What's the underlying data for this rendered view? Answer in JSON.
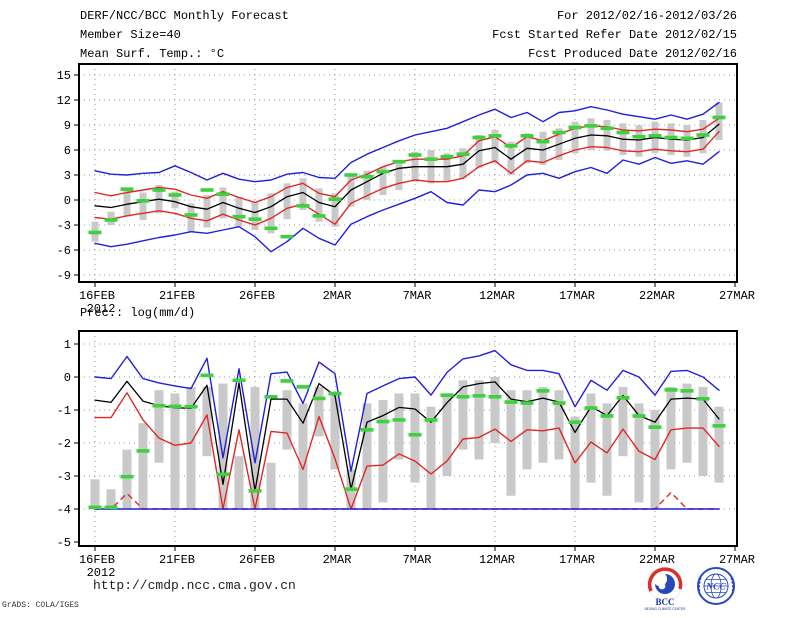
{
  "header": {
    "left": [
      "DERF/NCC/BCC Monthly Forecast",
      "Member Size=40",
      "Mean Surf. Temp.: °C"
    ],
    "right": [
      "For 2012/02/16-2012/03/26",
      "Fcst Started Refer Date 2012/02/15",
      "Fcst Produced Date 2012/02/16"
    ]
  },
  "footer": {
    "url": "http://cmdp.ncc.cma.gov.cn",
    "credit": "GrADS: COLA/IGES",
    "bcc_logo_text": "BCC",
    "bcc_logo_subtext": "BEIJING CLIMATE CENTER",
    "ncc_logo_text": "NCC"
  },
  "colors": {
    "envelope": "#2020d8",
    "quartile": "#e02828",
    "mean": "#000000",
    "observation": "#3dd13d",
    "spread_bar": "#c9c9c9",
    "gridline": "#9a9a9a"
  },
  "chart_data": [
    {
      "id": "temperature",
      "type": "line",
      "title": "Mean Surf. Temp.: °C",
      "x_tick_labels": [
        "16FEB",
        "21FEB",
        "26FEB",
        "2MAR",
        "7MAR",
        "12MAR",
        "17MAR",
        "22MAR",
        "27MAR"
      ],
      "year_label": "2012",
      "y_ticks": [
        15,
        12,
        9,
        6,
        3,
        0,
        -3,
        -6,
        -9
      ],
      "gridlines": [
        15,
        12,
        9,
        6,
        3,
        0,
        -3,
        -6,
        -9
      ],
      "ylim": [
        -9.8,
        16.3
      ],
      "legend_position": "none",
      "series": [
        {
          "name": "ensemble-max",
          "style": "envelope",
          "values": [
            3.5,
            3.1,
            3.0,
            3.2,
            3.3,
            4.1,
            3.3,
            2.4,
            3.2,
            2.5,
            2.2,
            2.4,
            3.1,
            3.3,
            2.7,
            2.6,
            4.5,
            5.5,
            6.3,
            7.1,
            7.8,
            8.2,
            8.6,
            9.4,
            10.2,
            10.9,
            9.9,
            10.5,
            9.4,
            10.5,
            10.7,
            11.2,
            10.8,
            10.3,
            10.0,
            9.7,
            10.2,
            9.7,
            10.3,
            11.7
          ]
        },
        {
          "name": "upper-quartile",
          "style": "quartile",
          "values": [
            0.9,
            0.5,
            0.9,
            1.2,
            1.5,
            1.3,
            0.6,
            0.2,
            1.0,
            0.3,
            -0.3,
            0.4,
            1.5,
            2.0,
            0.8,
            0.4,
            2.4,
            3.1,
            4.0,
            4.6,
            4.9,
            4.9,
            4.9,
            5.3,
            7.1,
            7.6,
            6.3,
            7.6,
            7.1,
            7.9,
            8.6,
            8.9,
            8.8,
            8.4,
            8.3,
            8.5,
            8.4,
            8.2,
            8.5,
            9.8
          ]
        },
        {
          "name": "ensemble-mean",
          "style": "mean",
          "values": [
            -0.7,
            -0.9,
            -0.5,
            -0.2,
            0.1,
            -0.2,
            -0.8,
            -1.1,
            -0.3,
            -1.0,
            -1.5,
            -0.8,
            0.4,
            0.9,
            -0.3,
            -0.8,
            1.2,
            2.2,
            3.2,
            3.8,
            4.0,
            4.0,
            4.0,
            4.3,
            5.9,
            6.3,
            4.9,
            6.2,
            6.0,
            6.7,
            7.4,
            7.8,
            7.7,
            7.3,
            7.2,
            7.5,
            7.3,
            7.2,
            7.5,
            9.1
          ]
        },
        {
          "name": "lower-quartile",
          "style": "quartile",
          "values": [
            -2.1,
            -2.3,
            -1.9,
            -1.6,
            -1.3,
            -1.6,
            -2.2,
            -2.5,
            -1.7,
            -2.4,
            -3.0,
            -2.2,
            -1.0,
            -0.5,
            -1.7,
            -2.9,
            -0.4,
            0.5,
            1.4,
            2.0,
            2.4,
            2.2,
            2.2,
            2.6,
            4.0,
            4.7,
            3.2,
            4.7,
            4.5,
            5.3,
            6.0,
            6.4,
            6.3,
            5.9,
            5.8,
            6.1,
            5.9,
            5.8,
            6.1,
            8.2
          ]
        },
        {
          "name": "ensemble-min",
          "style": "envelope",
          "values": [
            -5.2,
            -5.6,
            -5.3,
            -4.9,
            -4.5,
            -4.2,
            -3.8,
            -4.0,
            -3.6,
            -3.2,
            -4.4,
            -6.2,
            -5.0,
            -3.4,
            -4.6,
            -5.4,
            -2.9,
            -2.0,
            -1.2,
            -0.5,
            0.2,
            1.0,
            -0.3,
            -0.6,
            1.2,
            1.0,
            1.8,
            3.0,
            3.2,
            2.6,
            3.4,
            3.9,
            3.2,
            4.8,
            4.3,
            5.1,
            4.4,
            4.7,
            4.3,
            5.8
          ]
        },
        {
          "name": "observation",
          "style": "observation",
          "values": [
            -3.9,
            -2.4,
            1.3,
            -0.1,
            1.2,
            0.6,
            -1.8,
            1.2,
            0.7,
            -2.0,
            -2.3,
            -3.4,
            -4.4,
            -0.7,
            -1.9,
            0.1,
            3.0,
            2.8,
            3.4,
            4.6,
            5.4,
            4.9,
            5.2,
            5.5,
            7.5,
            7.7,
            6.5,
            7.7,
            7.0,
            8.1,
            8.7,
            8.9,
            8.6,
            8.1,
            7.6,
            7.7,
            7.5,
            7.4,
            7.8,
            9.9
          ]
        }
      ],
      "spread_bars": [
        [
          -5.0,
          -2.6
        ],
        [
          -3.0,
          -1.4
        ],
        [
          -2.0,
          1.2
        ],
        [
          -2.4,
          0.9
        ],
        [
          -1.6,
          1.8
        ],
        [
          -1.0,
          1.0
        ],
        [
          -3.8,
          -0.4
        ],
        [
          -3.3,
          0.6
        ],
        [
          -2.2,
          1.5
        ],
        [
          -3.2,
          0.4
        ],
        [
          -3.6,
          -0.2
        ],
        [
          -4.0,
          0.8
        ],
        [
          -2.3,
          2.0
        ],
        [
          -1.2,
          2.6
        ],
        [
          -2.6,
          1.4
        ],
        [
          -3.2,
          0.8
        ],
        [
          -0.8,
          2.9
        ],
        [
          0.0,
          3.5
        ],
        [
          0.6,
          4.0
        ],
        [
          1.2,
          4.8
        ],
        [
          2.2,
          5.8
        ],
        [
          2.0,
          6.0
        ],
        [
          2.2,
          5.6
        ],
        [
          2.6,
          6.2
        ],
        [
          3.8,
          7.8
        ],
        [
          4.4,
          8.4
        ],
        [
          3.0,
          7.0
        ],
        [
          4.4,
          8.0
        ],
        [
          4.2,
          8.2
        ],
        [
          4.8,
          8.6
        ],
        [
          5.6,
          9.4
        ],
        [
          6.0,
          9.8
        ],
        [
          5.9,
          9.6
        ],
        [
          5.4,
          9.2
        ],
        [
          5.2,
          9.0
        ],
        [
          5.6,
          9.4
        ],
        [
          5.4,
          9.2
        ],
        [
          5.2,
          9.0
        ],
        [
          5.6,
          9.6
        ],
        [
          7.2,
          11.7
        ]
      ]
    },
    {
      "id": "precipitation",
      "type": "line",
      "title": "Prec.: log(mm/d)",
      "x_tick_labels": [
        "16FEB",
        "21FEB",
        "26FEB",
        "2MAR",
        "7MAR",
        "12MAR",
        "17MAR",
        "22MAR",
        "27MAR"
      ],
      "year_label": "2012",
      "y_ticks": [
        1,
        0,
        -1,
        -2,
        -3,
        -4,
        -5
      ],
      "gridlines": [
        1,
        0,
        -1,
        -2,
        -3,
        -4
      ],
      "ylim": [
        -5.1,
        1.4
      ],
      "legend_position": "none",
      "series": [
        {
          "name": "ensemble-max",
          "style": "envelope",
          "values": [
            0.0,
            -0.05,
            0.62,
            -0.05,
            -0.18,
            -0.27,
            -0.35,
            0.57,
            -2.45,
            0.25,
            -2.6,
            0.1,
            0.15,
            -0.8,
            0.45,
            0.1,
            -2.85,
            -0.5,
            -0.27,
            -0.05,
            0.0,
            -0.55,
            0.14,
            0.55,
            0.64,
            0.8,
            0.37,
            0.2,
            0.2,
            0.1,
            -0.9,
            -0.1,
            -0.4,
            0.2,
            0.0,
            -0.55,
            0.17,
            0.2,
            0.0,
            -0.4
          ]
        },
        {
          "name": "upper-quartile",
          "style": "quartile",
          "values": [
            -1.23,
            -1.23,
            -0.48,
            -1.3,
            -1.85,
            -2.07,
            -2.0,
            -1.15,
            -4.0,
            -1.6,
            -4.0,
            -1.65,
            -1.7,
            -2.8,
            -1.2,
            -2.48,
            -4.0,
            -2.7,
            -2.67,
            -2.33,
            -2.55,
            -2.94,
            -2.55,
            -1.88,
            -1.83,
            -1.58,
            -1.95,
            -1.6,
            -1.63,
            -1.55,
            -2.6,
            -1.97,
            -2.3,
            -1.58,
            -2.25,
            -2.5,
            -1.6,
            -1.55,
            -1.55,
            -2.1
          ]
        },
        {
          "name": "ensemble-mean",
          "style": "mean",
          "values": [
            -0.7,
            -0.77,
            -0.13,
            -0.73,
            -0.87,
            -0.93,
            -0.95,
            -0.25,
            -3.25,
            -0.18,
            -3.45,
            -0.67,
            -0.67,
            -1.4,
            -0.2,
            -0.57,
            -3.4,
            -1.37,
            -1.17,
            -0.92,
            -0.97,
            -1.37,
            -0.78,
            -0.3,
            -0.2,
            -0.15,
            -0.67,
            -0.75,
            -0.64,
            -0.76,
            -1.68,
            -0.9,
            -1.17,
            -0.56,
            -1.17,
            -1.37,
            -0.67,
            -0.64,
            -0.67,
            -1.27
          ]
        },
        {
          "name": "lower-quartile",
          "style": "quartile-dashed",
          "values": [
            -4,
            -4,
            -3.53,
            -4,
            -4,
            -4,
            -4,
            -4,
            -4,
            -4,
            -4,
            -4,
            -4,
            -4,
            -4,
            -4,
            -4,
            -4,
            -4,
            -4,
            -4,
            -4,
            -4,
            -4,
            -4,
            -4,
            -4,
            -4,
            -4,
            -4,
            -4,
            -4,
            -4,
            -4,
            -4,
            -4,
            -3.5,
            -4,
            -4,
            -4
          ]
        },
        {
          "name": "ensemble-min",
          "style": "envelope",
          "values": [
            -4,
            -4,
            -4,
            -4,
            -4,
            -4,
            -4,
            -4,
            -4,
            -4,
            -4,
            -4,
            -4,
            -4,
            -4,
            -4,
            -4,
            -4,
            -4,
            -4,
            -4,
            -4,
            -4,
            -4,
            -4,
            -4,
            -4,
            -4,
            -4,
            -4,
            -4,
            -4,
            -4,
            -4,
            -4,
            -4,
            -4,
            -4,
            -4,
            -4
          ]
        },
        {
          "name": "observation",
          "style": "observation",
          "values": [
            -3.95,
            -3.95,
            -3.02,
            -2.24,
            -0.87,
            -0.89,
            -0.9,
            0.05,
            -2.95,
            -0.1,
            -3.45,
            -0.6,
            -0.12,
            -0.3,
            -0.65,
            -0.5,
            -3.4,
            -1.6,
            -1.35,
            -1.3,
            -1.75,
            -1.3,
            -0.55,
            -0.6,
            -0.57,
            -0.6,
            -0.76,
            -0.79,
            -0.42,
            -0.79,
            -1.37,
            -0.94,
            -1.18,
            -0.63,
            -1.18,
            -1.52,
            -0.39,
            -0.42,
            -0.66,
            -1.48
          ]
        }
      ],
      "spread_bars": [
        [
          -4,
          -3.1
        ],
        [
          -4,
          -3.4
        ],
        [
          -4,
          -2.2
        ],
        [
          -4,
          -1.4
        ],
        [
          -2.6,
          -0.4
        ],
        [
          -4,
          -0.5
        ],
        [
          -4,
          -0.3
        ],
        [
          -2.4,
          -0.3
        ],
        [
          -4,
          -0.2
        ],
        [
          -4,
          -2.4
        ],
        [
          -4,
          -0.3
        ],
        [
          -4,
          -2.6
        ],
        [
          -2.2,
          -0.4
        ],
        [
          -4,
          -0.8
        ],
        [
          -1.8,
          -0.3
        ],
        [
          -2.8,
          -0.5
        ],
        [
          -4,
          -2.8
        ],
        [
          -4,
          -0.8
        ],
        [
          -3.8,
          -0.7
        ],
        [
          -2.5,
          -0.5
        ],
        [
          -3.2,
          -0.5
        ],
        [
          -4,
          -0.9
        ],
        [
          -3.0,
          -0.5
        ],
        [
          -2.2,
          -0.1
        ],
        [
          -2.5,
          -0.1
        ],
        [
          -2.0,
          0.0
        ],
        [
          -3.6,
          -0.4
        ],
        [
          -2.8,
          -0.4
        ],
        [
          -2.6,
          -0.3
        ],
        [
          -2.5,
          -0.4
        ],
        [
          -4,
          -1.2
        ],
        [
          -3.2,
          -0.5
        ],
        [
          -3.6,
          -0.8
        ],
        [
          -2.4,
          -0.3
        ],
        [
          -3.8,
          -0.8
        ],
        [
          -4,
          -1.0
        ],
        [
          -2.8,
          -0.3
        ],
        [
          -2.6,
          -0.2
        ],
        [
          -3.0,
          -0.3
        ],
        [
          -3.2,
          -0.9
        ]
      ]
    }
  ]
}
